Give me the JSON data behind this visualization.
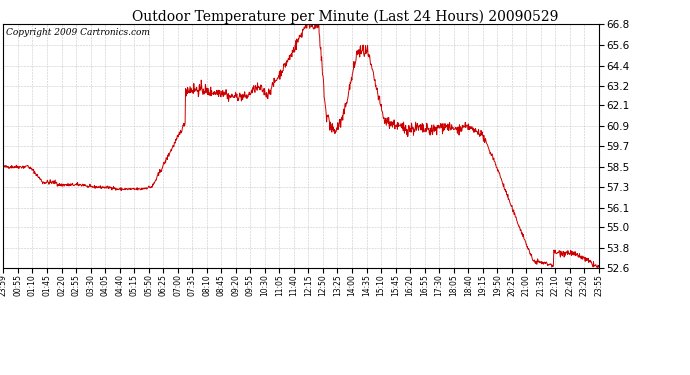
{
  "title": "Outdoor Temperature per Minute (Last 24 Hours) 20090529",
  "copyright": "Copyright 2009 Cartronics.com",
  "line_color": "#cc0000",
  "bg_color": "#ffffff",
  "grid_color": "#bbbbbb",
  "ylim": [
    52.6,
    66.8
  ],
  "yticks": [
    52.6,
    53.8,
    55.0,
    56.1,
    57.3,
    58.5,
    59.7,
    60.9,
    62.1,
    63.2,
    64.4,
    65.6,
    66.8
  ],
  "xtick_labels": [
    "23:59",
    "00:55",
    "01:10",
    "01:45",
    "02:20",
    "02:55",
    "03:30",
    "04:05",
    "04:40",
    "05:15",
    "05:50",
    "06:25",
    "07:00",
    "07:35",
    "08:10",
    "08:45",
    "09:20",
    "09:55",
    "10:30",
    "11:05",
    "11:40",
    "12:15",
    "12:50",
    "13:25",
    "14:00",
    "14:35",
    "15:10",
    "15:45",
    "16:20",
    "16:55",
    "17:30",
    "18:05",
    "18:40",
    "19:15",
    "19:50",
    "20:25",
    "21:00",
    "21:35",
    "22:10",
    "22:45",
    "23:20",
    "23:55"
  ],
  "n_minutes": 1440,
  "seed": 42,
  "title_fontsize": 10,
  "copyright_fontsize": 6.5,
  "ytick_fontsize": 7.5,
  "xtick_fontsize": 5.5
}
